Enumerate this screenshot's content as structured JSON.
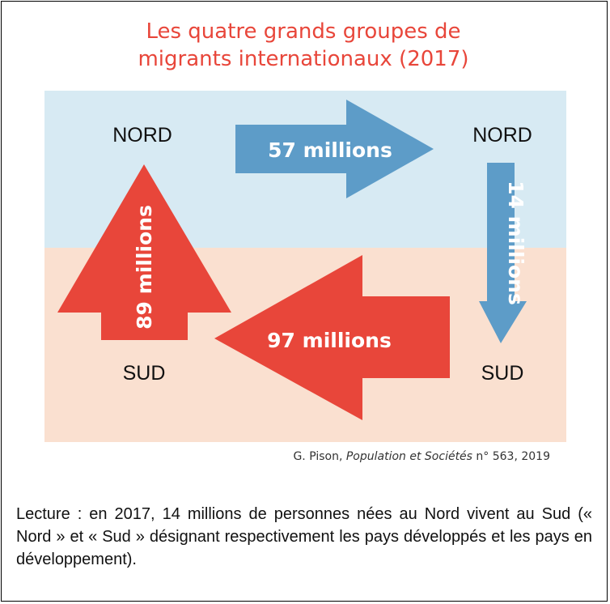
{
  "title": {
    "line1": "Les quatre grands groupes de",
    "line2": "migrants internationaux (2017)"
  },
  "colors": {
    "title": "#e8463a",
    "north_band": "#d7eaf3",
    "south_band": "#fae0d0",
    "north_arrow": "#5d9cc8",
    "south_arrow": "#e8463a"
  },
  "regions": {
    "north_left": "NORD",
    "north_right": "NORD",
    "south_left": "SUD",
    "south_right": "SUD"
  },
  "flows": [
    {
      "from": "NORD",
      "to": "NORD",
      "label": "57 millions",
      "value_millions": 57
    },
    {
      "from": "NORD",
      "to": "SUD",
      "label": "14 millions",
      "value_millions": 14
    },
    {
      "from": "SUD",
      "to": "SUD",
      "label": "97 millions",
      "value_millions": 97
    },
    {
      "from": "SUD",
      "to": "NORD",
      "label": "89 millions",
      "value_millions": 89
    }
  ],
  "source": {
    "author": "G. Pison, ",
    "publication": "Population et Sociétés",
    "rest": " n° 563, 2019"
  },
  "note": "Lecture : en 2017, 14 millions de personnes nées au Nord vivent au Sud (« Nord » et « Sud » désignant respectivement les pays développés et les pays en développement)."
}
